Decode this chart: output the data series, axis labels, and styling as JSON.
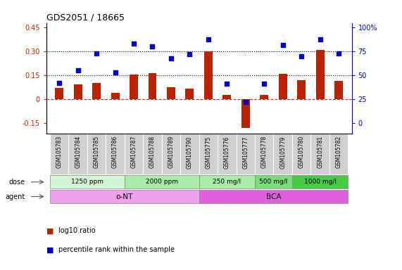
{
  "title": "GDS2051 / 18665",
  "samples": [
    "GSM105783",
    "GSM105784",
    "GSM105785",
    "GSM105786",
    "GSM105787",
    "GSM105788",
    "GSM105789",
    "GSM105790",
    "GSM105775",
    "GSM105776",
    "GSM105777",
    "GSM105778",
    "GSM105779",
    "GSM105780",
    "GSM105781",
    "GSM105782"
  ],
  "log10_ratio": [
    0.07,
    0.09,
    0.1,
    0.04,
    0.155,
    0.165,
    0.075,
    0.065,
    0.302,
    0.025,
    -0.185,
    0.025,
    0.16,
    0.12,
    0.31,
    0.115
  ],
  "percentile": [
    42,
    55,
    73,
    53,
    83,
    80,
    68,
    72,
    88,
    41,
    22,
    41,
    82,
    70,
    88,
    73
  ],
  "dose_groups": [
    {
      "label": "1250 ppm",
      "start": 0,
      "end": 4,
      "color": "#d4f5d4"
    },
    {
      "label": "2000 ppm",
      "start": 4,
      "end": 8,
      "color": "#aaeaaa"
    },
    {
      "label": "250 mg/l",
      "start": 8,
      "end": 11,
      "color": "#aaeaaa"
    },
    {
      "label": "500 mg/l",
      "start": 11,
      "end": 13,
      "color": "#77dd77"
    },
    {
      "label": "1000 mg/l",
      "start": 13,
      "end": 16,
      "color": "#44cc44"
    }
  ],
  "agent_groups": [
    {
      "label": "o-NT",
      "start": 0,
      "end": 8,
      "color": "#f0a0f0"
    },
    {
      "label": "BCA",
      "start": 8,
      "end": 16,
      "color": "#e060e0"
    }
  ],
  "bar_color": "#bb2200",
  "dot_color": "#0000cc",
  "ylim_left": [
    -0.22,
    0.48
  ],
  "yticks_left": [
    -0.15,
    0.0,
    0.15,
    0.3,
    0.45
  ],
  "yticks_right": [
    0,
    25,
    50,
    75,
    100
  ],
  "hline_y": [
    0.15,
    0.3
  ],
  "dashed_zero_color": "#cc2222",
  "legend_items": [
    {
      "color": "#bb2200",
      "label": "log10 ratio"
    },
    {
      "color": "#0000cc",
      "label": "percentile rank within the sample"
    }
  ]
}
